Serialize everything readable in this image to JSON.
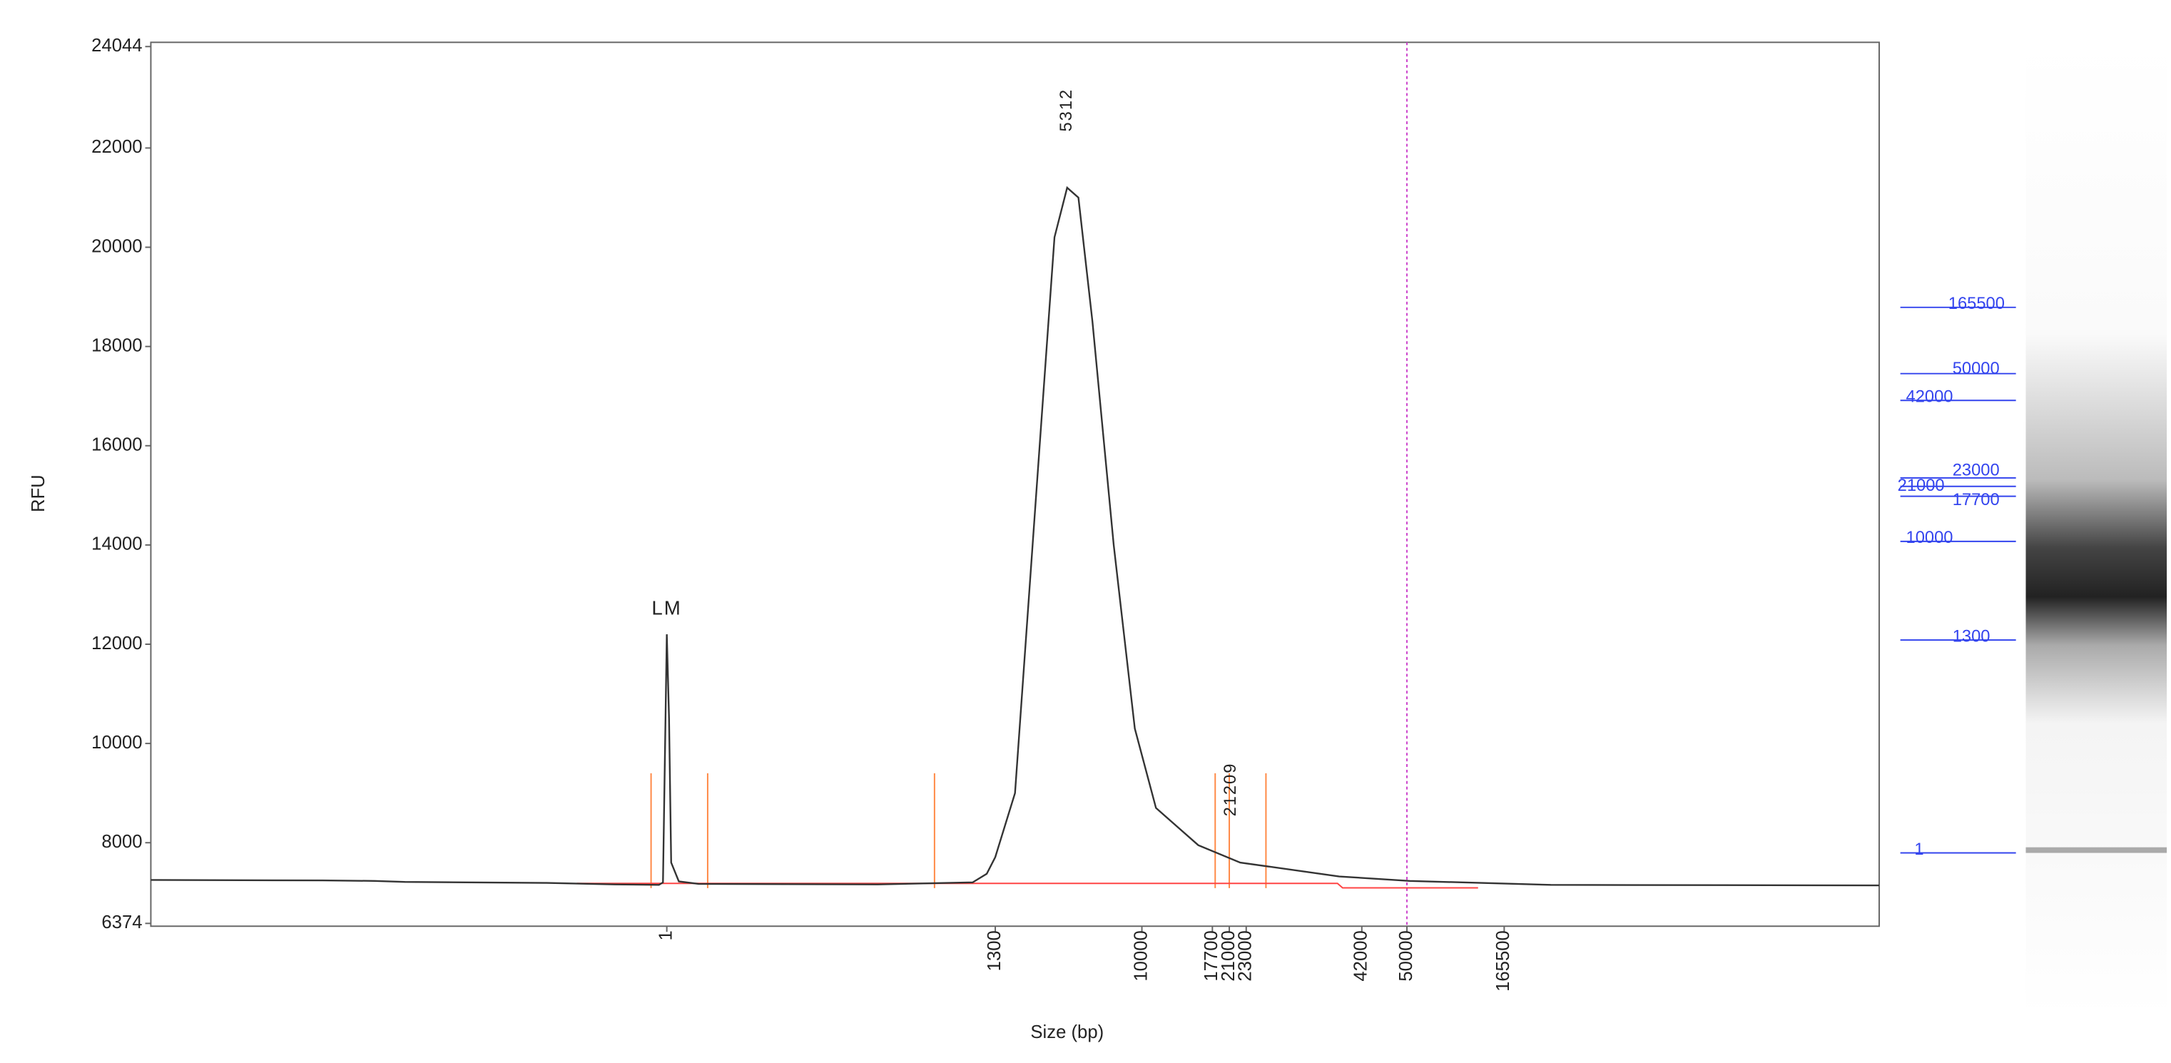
{
  "chart_data": {
    "type": "line",
    "x_label": "Size (bp)",
    "y_label": "RFU",
    "xscale": "log",
    "xlim": [
      0.001,
      1000000
    ],
    "xticks": [
      1,
      1300,
      10000,
      17700,
      21000,
      23000,
      42000,
      50000,
      165500
    ],
    "ylim": [
      6374,
      24044
    ],
    "yticks": [
      6374,
      8000,
      10000,
      12000,
      14000,
      16000,
      18000,
      20000,
      22000,
      24044
    ],
    "series": [
      {
        "color": "#333333",
        "x": [
          0.001,
          0.01,
          0.02,
          0.03,
          0.2,
          0.5,
          0.9,
          0.95,
          1,
          1.05,
          1.1,
          1.3,
          2,
          100,
          793,
          1079,
          1300,
          1711,
          2295,
          2963,
          3534,
          4135,
          5026,
          6756,
          9064,
          11208,
          15790,
          22270,
          37340,
          51770,
          206900,
          1000000
        ],
        "values": [
          7250,
          7240,
          7230,
          7210,
          7190,
          7160,
          7150,
          7200,
          12200,
          10500,
          7600,
          7220,
          7170,
          7160,
          7200,
          7374,
          7710,
          9000,
          15000,
          20200,
          21200,
          21000,
          18500,
          14000,
          10300,
          8700,
          7950,
          7600,
          7320,
          7230,
          7150,
          7140
        ]
      }
    ],
    "baseline": {
      "color": "#ff4444",
      "x": [
        0.3,
        37000,
        38000,
        120000
      ],
      "values": [
        7180,
        7180,
        7090,
        7090
      ]
    },
    "boundaries": {
      "color": "#ff8844",
      "x": [
        0.81,
        2.44,
        345,
        18210,
        21000,
        25490
      ],
      "top": 9400
    },
    "cursor": {
      "x": 50000,
      "color": "#cc44cc"
    },
    "annotations": [
      {
        "text": "LM",
        "x": 1,
        "y": 12700,
        "color": "#ee2222"
      },
      {
        "text": "5312",
        "x": 3534,
        "y": 22766,
        "color": "#3344ee",
        "rotate": true
      },
      {
        "text": "21209",
        "x": 21209,
        "y": 9074,
        "color": "#3344ee",
        "rotate": true
      }
    ],
    "ladder": {
      "color": "#3344ee",
      "labels": [
        165500,
        50000,
        42000,
        23000,
        21000,
        17700,
        10000,
        1300,
        1
      ]
    }
  }
}
